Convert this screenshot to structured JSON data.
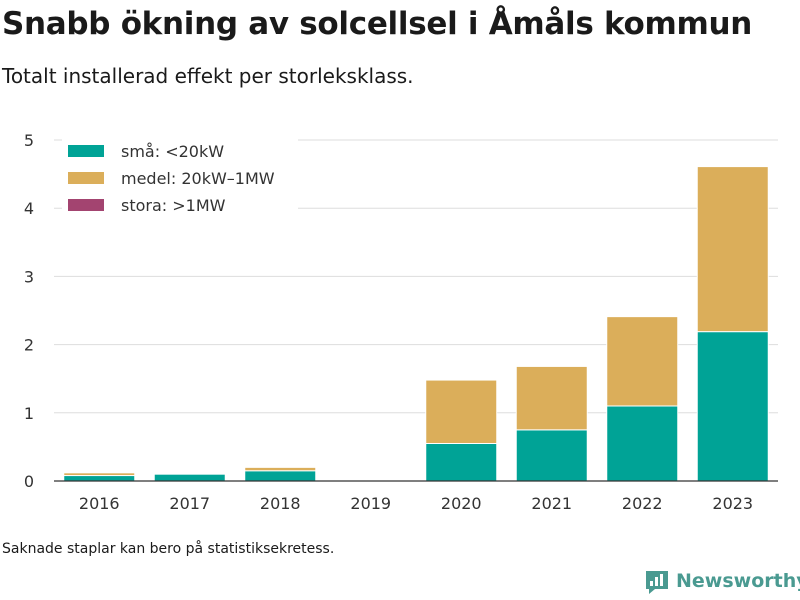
{
  "header": {
    "title": "Snabb ökning av solcellsel i Åmåls kommun",
    "subtitle": "Totalt installerad effekt per storleksklass."
  },
  "footer": {
    "note": "Saknade staplar kan bero på statistiksekretess.",
    "brand": "Newsworthy"
  },
  "colors": {
    "small": "#00a396",
    "medium": "#dbae5a",
    "large": "#a34470",
    "grid": "#dddddd",
    "axis": "#333333",
    "brand": "#4a9a91"
  },
  "chart_data": {
    "type": "bar",
    "stacked": true,
    "categories": [
      "2016",
      "2017",
      "2018",
      "2019",
      "2020",
      "2021",
      "2022",
      "2023"
    ],
    "series": [
      {
        "name": "små: <20kW",
        "values": [
          0.08,
          0.1,
          0.15,
          null,
          0.55,
          0.75,
          1.1,
          2.19
        ]
      },
      {
        "name": "medel: 20kW–1MW",
        "values": [
          0.04,
          0.0,
          0.05,
          null,
          0.93,
          0.93,
          1.31,
          2.42
        ]
      },
      {
        "name": "stora: >1MW",
        "values": [
          0,
          0,
          0,
          null,
          0,
          0,
          0,
          0
        ]
      }
    ],
    "ylim": [
      0,
      5
    ],
    "yticks": [
      0,
      1,
      2,
      3,
      4,
      5
    ],
    "grid": true,
    "legend": "top-left"
  }
}
